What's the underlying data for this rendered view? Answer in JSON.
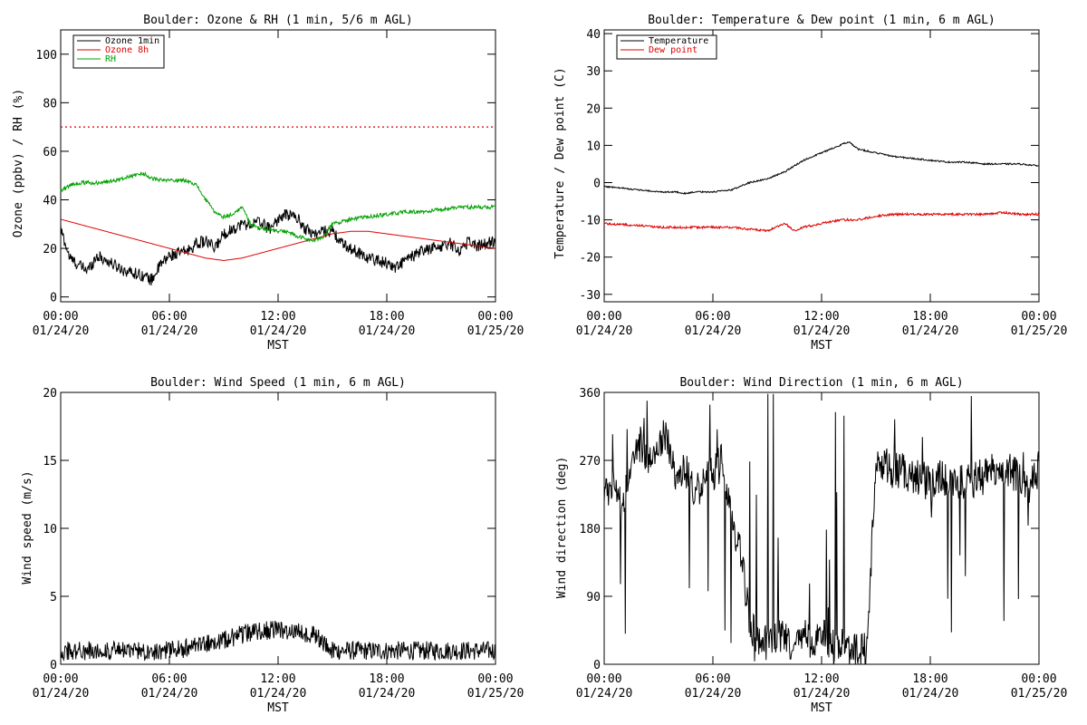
{
  "figure": {
    "background": "#ffffff",
    "colors": {
      "black": "#000000",
      "red": "#dd0000",
      "green": "#00a000"
    }
  },
  "chart_data": [
    {
      "id": "ozone-rh",
      "type": "line",
      "title": "Boulder: Ozone & RH (1 min, 5/6 m AGL)",
      "ylabel": "Ozone (ppbv) / RH (%)",
      "xlabel": "MST",
      "xlim": [
        0,
        24
      ],
      "ylim": [
        -2,
        110
      ],
      "yticks": [
        0,
        20,
        40,
        60,
        80,
        100
      ],
      "xticks": [
        {
          "value": 0,
          "time": "00:00",
          "date": "01/24/20"
        },
        {
          "value": 6,
          "time": "06:00",
          "date": "01/24/20"
        },
        {
          "value": 12,
          "time": "12:00",
          "date": "01/24/20"
        },
        {
          "value": 18,
          "time": "18:00",
          "date": "01/24/20"
        },
        {
          "value": 24,
          "time": "00:00",
          "date": "01/25/20"
        }
      ],
      "legend": {
        "position": "top-left",
        "entries": [
          {
            "label": "Ozone 1min",
            "color": "#000000"
          },
          {
            "label": "Ozone 8h",
            "color": "#dd0000"
          },
          {
            "label": "RH",
            "color": "#00a000"
          }
        ]
      },
      "hlines": [
        {
          "y": 70,
          "color": "#dd0000",
          "style": "dotted"
        }
      ],
      "series": [
        {
          "name": "Ozone 1min",
          "color": "#000000",
          "noise": 2.5,
          "x": [
            0,
            0.5,
            1,
            1.5,
            2,
            2.5,
            3,
            3.5,
            4,
            4.5,
            5,
            5.5,
            6,
            6.5,
            7,
            7.5,
            8,
            8.5,
            9,
            9.5,
            10,
            10.5,
            11,
            11.5,
            12,
            12.5,
            13,
            13.5,
            14,
            14.5,
            15,
            15.5,
            16,
            16.5,
            17,
            17.5,
            18,
            18.5,
            19,
            19.5,
            20,
            20.5,
            21,
            21.5,
            22,
            22.5,
            23,
            23.5,
            24
          ],
          "y": [
            28,
            16,
            13,
            11,
            17,
            15,
            13,
            11,
            10,
            9,
            7,
            13,
            17,
            18,
            19,
            22,
            23,
            20,
            26,
            28,
            30,
            30,
            31,
            28,
            32,
            34,
            33,
            28,
            26,
            27,
            27,
            22,
            20,
            18,
            16,
            15,
            14,
            12,
            15,
            17,
            19,
            20,
            21,
            22,
            19,
            23,
            21,
            22,
            23
          ]
        },
        {
          "name": "Ozone 8h",
          "color": "#dd0000",
          "noise": 0,
          "x": [
            0,
            1,
            2,
            3,
            4,
            5,
            6,
            7,
            8,
            9,
            10,
            11,
            12,
            13,
            14,
            15,
            16,
            17,
            18,
            19,
            20,
            21,
            22,
            23,
            24
          ],
          "y": [
            32,
            30,
            28,
            26,
            24,
            22,
            20,
            18,
            16,
            15,
            16,
            18,
            20,
            22,
            24,
            26,
            27,
            27,
            26,
            25,
            24,
            23,
            22,
            21,
            20
          ]
        },
        {
          "name": "RH",
          "color": "#00a000",
          "noise": 0.8,
          "x": [
            0,
            0.5,
            1,
            2,
            3,
            4,
            4.5,
            5,
            5.5,
            6,
            6.5,
            7,
            7.5,
            8,
            8.5,
            9,
            9.5,
            10,
            10.5,
            11,
            11.5,
            12,
            12.5,
            13,
            13.5,
            14,
            14.5,
            15,
            16,
            17,
            18,
            19,
            20,
            21,
            22,
            23,
            24
          ],
          "y": [
            44,
            46,
            47,
            47,
            48,
            50,
            51,
            49,
            48,
            48,
            48,
            48,
            46,
            40,
            35,
            33,
            34,
            37,
            30,
            28,
            28,
            27,
            27,
            25,
            24,
            23,
            25,
            30,
            32,
            33,
            34,
            35,
            35,
            36,
            37,
            37,
            37
          ]
        }
      ]
    },
    {
      "id": "temp-dew",
      "type": "line",
      "title": "Boulder: Temperature & Dew point (1 min, 6 m AGL)",
      "ylabel": "Temperature / Dew point (C)",
      "xlabel": "MST",
      "xlim": [
        0,
        24
      ],
      "ylim": [
        -32,
        41
      ],
      "yticks": [
        -30,
        -20,
        -10,
        0,
        10,
        20,
        30,
        40
      ],
      "xticks": [
        {
          "value": 0,
          "time": "00:00",
          "date": "01/24/20"
        },
        {
          "value": 6,
          "time": "06:00",
          "date": "01/24/20"
        },
        {
          "value": 12,
          "time": "12:00",
          "date": "01/24/20"
        },
        {
          "value": 18,
          "time": "18:00",
          "date": "01/24/20"
        },
        {
          "value": 24,
          "time": "00:00",
          "date": "01/25/20"
        }
      ],
      "legend": {
        "position": "top-left",
        "entries": [
          {
            "label": "Temperature",
            "color": "#000000"
          },
          {
            "label": "Dew point",
            "color": "#dd0000"
          }
        ]
      },
      "hlines": [],
      "series": [
        {
          "name": "Temperature",
          "color": "#000000",
          "noise": 0.2,
          "x": [
            0,
            1,
            2,
            3,
            4,
            4.5,
            5,
            6,
            7,
            8,
            9,
            10,
            11,
            12,
            13,
            13.5,
            14,
            15,
            16,
            17,
            18,
            19,
            20,
            21,
            22,
            23,
            24
          ],
          "y": [
            -1,
            -1.5,
            -2,
            -2.5,
            -2.5,
            -3,
            -2.5,
            -2.5,
            -2,
            0,
            1,
            3,
            6,
            8,
            10,
            11,
            9,
            8,
            7,
            6.5,
            6,
            5.5,
            5.5,
            5,
            5,
            5,
            4.5
          ]
        },
        {
          "name": "Dew point",
          "color": "#dd0000",
          "noise": 0.3,
          "x": [
            0,
            2,
            3,
            4,
            5,
            6,
            7,
            8,
            9,
            9.5,
            10,
            10.5,
            11,
            12,
            13,
            14,
            15,
            16,
            17,
            18,
            19,
            20,
            21,
            22,
            23,
            24
          ],
          "y": [
            -11,
            -11.5,
            -12,
            -12,
            -12,
            -12,
            -12,
            -12.5,
            -13,
            -12,
            -11,
            -13,
            -12,
            -11,
            -10,
            -10,
            -9,
            -8.5,
            -8.5,
            -8.5,
            -8.5,
            -8.5,
            -8.5,
            -8,
            -8.5,
            -8.5
          ]
        }
      ]
    },
    {
      "id": "wind-speed",
      "type": "line",
      "title": "Boulder: Wind Speed (1 min, 6 m AGL)",
      "ylabel": "Wind speed (m/s)",
      "xlabel": "MST",
      "xlim": [
        0,
        24
      ],
      "ylim": [
        0,
        20
      ],
      "yticks": [
        0,
        5,
        10,
        15,
        20
      ],
      "xticks": [
        {
          "value": 0,
          "time": "00:00",
          "date": "01/24/20"
        },
        {
          "value": 6,
          "time": "06:00",
          "date": "01/24/20"
        },
        {
          "value": 12,
          "time": "12:00",
          "date": "01/24/20"
        },
        {
          "value": 18,
          "time": "18:00",
          "date": "01/24/20"
        },
        {
          "value": 24,
          "time": "00:00",
          "date": "01/25/20"
        }
      ],
      "legend": null,
      "hlines": [],
      "series": [
        {
          "name": "Wind speed",
          "color": "#000000",
          "noise": 0.7,
          "x": [
            0,
            1,
            2,
            3,
            4,
            5,
            6,
            7,
            8,
            9,
            10,
            11,
            12,
            13,
            14,
            15,
            16,
            17,
            18,
            19,
            20,
            21,
            22,
            23,
            24
          ],
          "y": [
            1,
            1,
            1,
            1,
            1,
            1,
            1,
            1.2,
            1.5,
            1.8,
            2.2,
            2.5,
            2.5,
            2.4,
            2.2,
            1,
            1,
            1,
            1,
            1,
            1,
            1,
            1,
            1,
            1
          ]
        }
      ]
    },
    {
      "id": "wind-dir",
      "type": "line",
      "title": "Boulder: Wind Direction (1 min, 6 m AGL)",
      "ylabel": "Wind direction (deg)",
      "xlabel": "MST",
      "xlim": [
        0,
        24
      ],
      "ylim": [
        0,
        360
      ],
      "yticks": [
        0,
        90,
        180,
        270,
        360
      ],
      "xticks": [
        {
          "value": 0,
          "time": "00:00",
          "date": "01/24/20"
        },
        {
          "value": 6,
          "time": "06:00",
          "date": "01/24/20"
        },
        {
          "value": 12,
          "time": "12:00",
          "date": "01/24/20"
        },
        {
          "value": 18,
          "time": "18:00",
          "date": "01/24/20"
        },
        {
          "value": 24,
          "time": "00:00",
          "date": "01/25/20"
        }
      ],
      "legend": null,
      "hlines": [],
      "series": [
        {
          "name": "Wind direction",
          "color": "#000000",
          "noise": 25,
          "x": [
            0,
            0.5,
            1,
            1.5,
            2,
            2.5,
            3,
            3.5,
            4,
            4.5,
            5,
            5.5,
            6,
            6.5,
            7,
            7.5,
            8,
            8.5,
            9,
            9.5,
            10,
            10.5,
            11,
            11.5,
            12,
            12.5,
            13,
            13.5,
            14,
            14.5,
            15,
            16,
            17,
            18,
            19,
            20,
            21,
            22,
            23,
            23.5,
            24
          ],
          "y": [
            220,
            250,
            200,
            280,
            290,
            260,
            300,
            300,
            240,
            260,
            220,
            250,
            250,
            270,
            200,
            150,
            60,
            30,
            30,
            40,
            30,
            20,
            40,
            30,
            40,
            20,
            30,
            20,
            20,
            20,
            270,
            260,
            250,
            240,
            250,
            240,
            250,
            260,
            250,
            230,
            260
          ]
        }
      ]
    }
  ]
}
